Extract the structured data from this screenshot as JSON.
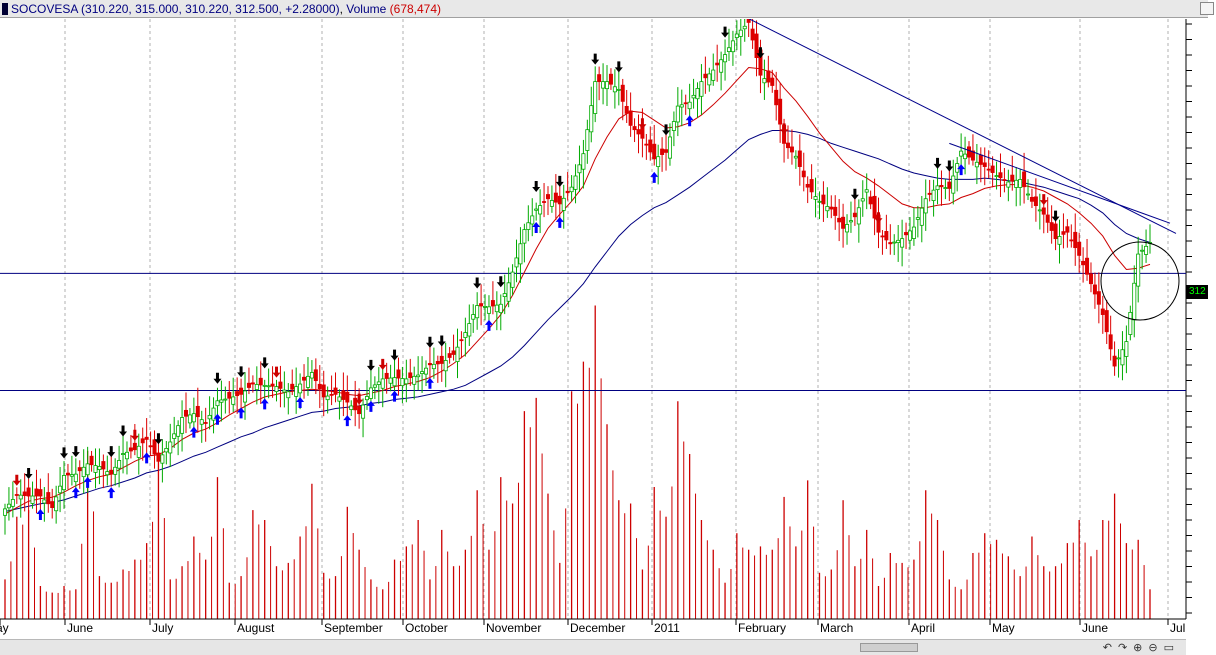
{
  "header": {
    "symbol": "SOCOVESA",
    "ohlc_text": "(310.220, 315.000, 310.220, 312.500, +2.28000)",
    "volume_label": "Volume",
    "volume_text": "(678,474)"
  },
  "price_tag": "312",
  "chart_data": {
    "type": "candlestick",
    "title": "SOCOVESA",
    "x_labels": [
      "May",
      "June",
      "July",
      "August",
      "September",
      "October",
      "November",
      "December",
      "2011",
      "February",
      "March",
      "April",
      "May",
      "June",
      "Jul"
    ],
    "price_range": [
      283,
      329
    ],
    "horizontal_support_lines": [
      309.7,
      300.6
    ],
    "last_close": 312.5,
    "series": [
      {
        "name": "price",
        "values": [
          291.4,
          292.5,
          292.4,
          292.4,
          291.5,
          294.0,
          294.1,
          294.9,
          294.7,
          294.1,
          295.7,
          296.0,
          296.8,
          295.1,
          296.6,
          298.5,
          298.8,
          298.1,
          299.8,
          300.0,
          300.3,
          301.1,
          301.0,
          300.9,
          300.5,
          301.1,
          302.0,
          300.1,
          300.3,
          299.7,
          298.8,
          300.8,
          301.5,
          301.6,
          301.5,
          301.8,
          302.6,
          302.7,
          303.4,
          305.1,
          307.2,
          307.1,
          307.3,
          309.8,
          313.1,
          314.7,
          315.5,
          315.1,
          316.4,
          319.0,
          324.6,
          324.6,
          324.0,
          321.2,
          320.2,
          318.6,
          319.1,
          322.7,
          323.0,
          324.6,
          325.5,
          326.7,
          328.3,
          329.2,
          325.1,
          324.3,
          319.8,
          318.8,
          316.4,
          315.3,
          314.7,
          313.2,
          314.1,
          316.2,
          312.9,
          312.0,
          312.4,
          313.3,
          315.5,
          316.5,
          316.3,
          319.2,
          318.5,
          318.0,
          317.3,
          316.8,
          317.0,
          315.3,
          314.3,
          312.4,
          312.9,
          311.1,
          308.9,
          306.5,
          302.5,
          304.4,
          311.2,
          312.1
        ]
      },
      {
        "name": "fast-ma",
        "values": [
          291.0,
          291.5,
          292.0,
          292.2,
          292.3,
          292.7,
          293.2,
          293.6,
          293.9,
          294.1,
          294.6,
          295.1,
          295.5,
          295.6,
          296.1,
          296.8,
          297.3,
          297.6,
          298.1,
          298.7,
          299.2,
          299.7,
          300.1,
          300.3,
          300.5,
          300.6,
          300.7,
          300.6,
          300.5,
          300.3,
          300.2,
          300.4,
          300.6,
          300.9,
          301.1,
          301.3,
          301.6,
          302.1,
          302.7,
          303.4,
          304.4,
          305.4,
          306.5,
          308.0,
          309.8,
          311.6,
          313.2,
          314.3,
          315.3,
          316.5,
          318.6,
          320.3,
          321.7,
          322.3,
          322.2,
          321.6,
          321.0,
          321.1,
          321.4,
          322.0,
          322.8,
          323.7,
          324.7,
          325.7,
          325.6,
          325.3,
          324.1,
          323.1,
          321.9,
          320.6,
          319.5,
          318.4,
          317.6,
          317.1,
          316.5,
          315.8,
          315.1,
          314.8,
          314.8,
          315.0,
          315.1,
          315.6,
          315.9,
          316.3,
          316.5,
          316.6,
          316.6,
          316.4,
          316.1,
          315.6,
          315.1,
          314.4,
          313.6,
          312.6,
          311.1,
          310.0,
          310.1,
          310.4
        ]
      },
      {
        "name": "slow-ma",
        "values": [
          291.2,
          291.4,
          291.6,
          291.8,
          291.9,
          292.1,
          292.4,
          292.7,
          293.0,
          293.2,
          293.5,
          293.8,
          294.2,
          294.4,
          294.7,
          295.1,
          295.5,
          295.8,
          296.2,
          296.6,
          297.0,
          297.3,
          297.7,
          298.0,
          298.3,
          298.6,
          298.9,
          299.0,
          299.2,
          299.3,
          299.4,
          299.6,
          299.7,
          299.9,
          300.0,
          300.1,
          300.3,
          300.5,
          300.7,
          301.0,
          301.5,
          302.0,
          302.5,
          303.2,
          304.1,
          305.1,
          306.1,
          307.0,
          307.9,
          308.9,
          310.2,
          311.4,
          312.6,
          313.5,
          314.2,
          314.8,
          315.2,
          315.8,
          316.4,
          317.1,
          317.8,
          318.5,
          319.3,
          320.1,
          320.5,
          320.8,
          320.8,
          320.7,
          320.5,
          320.2,
          319.8,
          319.5,
          319.2,
          318.9,
          318.6,
          318.2,
          317.8,
          317.5,
          317.3,
          317.1,
          317.0,
          317.0,
          317.0,
          317.1,
          317.0,
          316.9,
          316.8,
          316.6,
          316.4,
          316.1,
          315.8,
          315.5,
          315.0,
          314.4,
          313.5,
          312.8,
          312.4,
          312.1
        ]
      },
      {
        "name": "volume",
        "values": [
          0.12,
          0.31,
          0.33,
          0.1,
          0.08,
          0.1,
          0.09,
          0.51,
          0.13,
          0.11,
          0.15,
          0.18,
          0.23,
          0.48,
          0.12,
          0.16,
          0.25,
          0.18,
          0.43,
          0.11,
          0.13,
          0.33,
          0.3,
          0.16,
          0.17,
          0.25,
          0.41,
          0.14,
          0.13,
          0.34,
          0.21,
          0.12,
          0.09,
          0.18,
          0.22,
          0.3,
          0.12,
          0.27,
          0.16,
          0.21,
          0.39,
          0.21,
          0.43,
          0.35,
          0.63,
          0.67,
          0.38,
          0.17,
          0.69,
          0.78,
          0.95,
          0.59,
          0.36,
          0.35,
          0.15,
          0.4,
          0.31,
          0.66,
          0.5,
          0.3,
          0.21,
          0.11,
          0.26,
          0.21,
          0.22,
          0.21,
          0.37,
          0.22,
          0.42,
          0.14,
          0.15,
          0.36,
          0.16,
          0.27,
          0.1,
          0.2,
          0.17,
          0.18,
          0.39,
          0.3,
          0.12,
          0.09,
          0.2,
          0.26,
          0.24,
          0.19,
          0.13,
          0.25,
          0.16,
          0.16,
          0.23,
          0.3,
          0.19,
          0.3,
          0.38,
          0.23,
          0.24,
          0.09
        ]
      }
    ],
    "annotations": [
      "downtrend-line",
      "circle-highlight",
      "signal-arrows"
    ],
    "colors": {
      "up": "#00aa00",
      "down": "#dd0000",
      "fast_ma": "#cc0000",
      "slow_ma": "#000080",
      "volume": "#cc0000",
      "support": "#000080",
      "arrow_up": "#0000ff",
      "arrow_down": "#000000"
    }
  }
}
